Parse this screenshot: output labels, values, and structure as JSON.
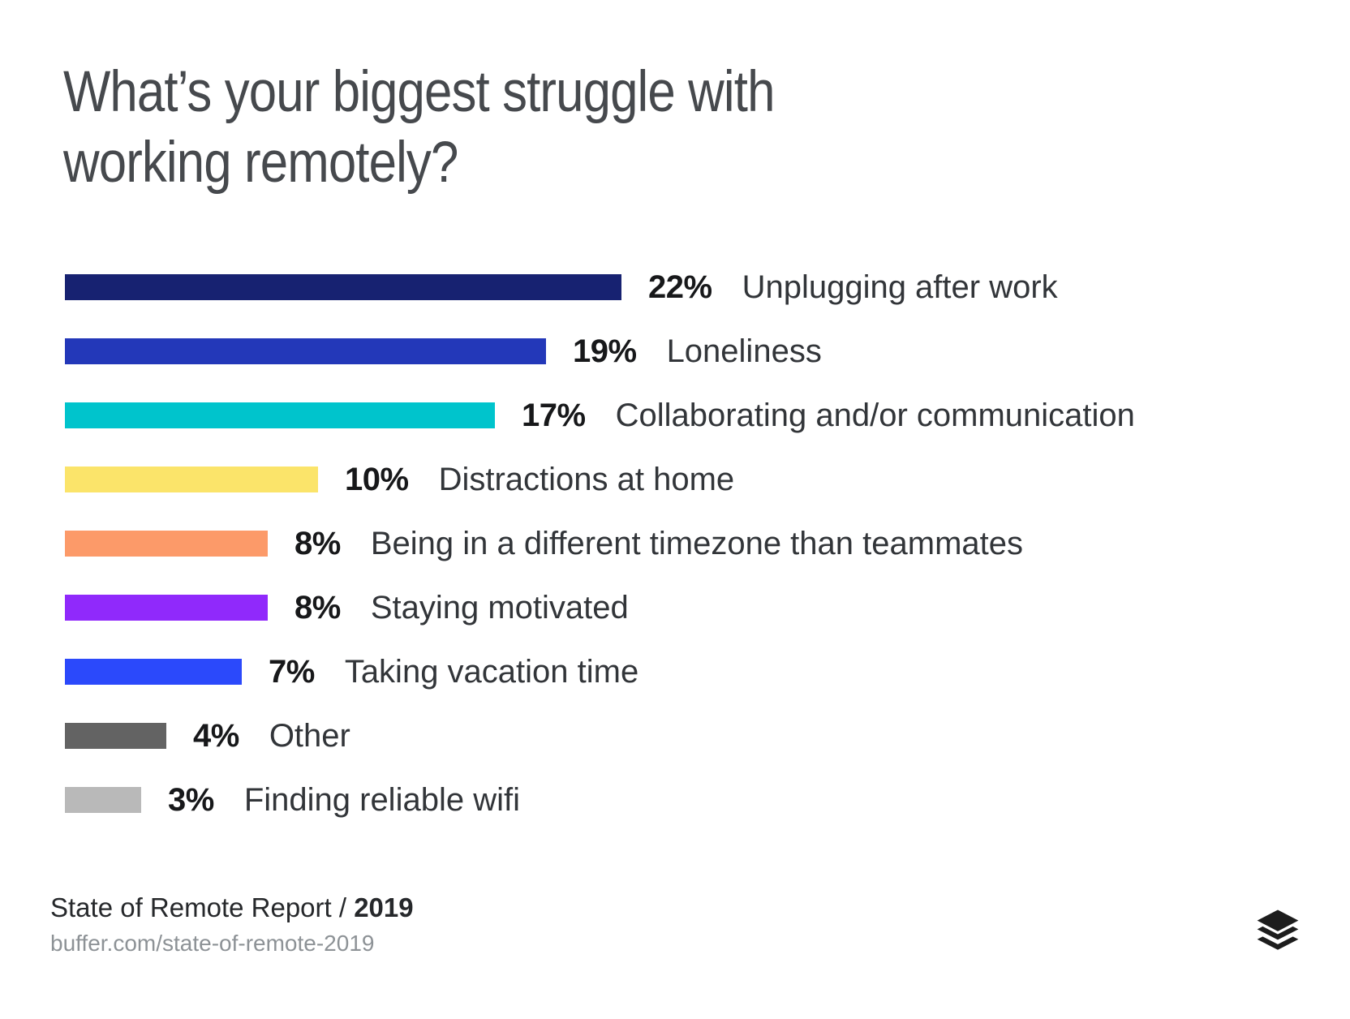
{
  "title": {
    "line1": "What’s your biggest struggle with",
    "line2": "working remotely?"
  },
  "chart_data": {
    "type": "bar",
    "orientation": "horizontal",
    "title": "What’s your biggest struggle with working remotely?",
    "unit": "percent",
    "xlim": [
      0,
      22
    ],
    "grid": false,
    "legend": false,
    "categories": [
      "Unplugging after work",
      "Loneliness",
      "Collaborating and/or communication",
      "Distractions at home",
      "Being in a different timezone than teammates",
      "Staying motivated",
      "Taking vacation time",
      "Other",
      "Finding reliable wifi"
    ],
    "values": [
      22,
      19,
      17,
      10,
      8,
      8,
      7,
      4,
      3
    ],
    "value_labels": [
      "22%",
      "19%",
      "17%",
      "10%",
      "8%",
      "8%",
      "7%",
      "4%",
      "3%"
    ],
    "bar_colors": [
      "#172271",
      "#2338b9",
      "#00c4cc",
      "#fbe46a",
      "#fc9a69",
      "#9029fb",
      "#2b49fb",
      "#636363",
      "#b9b9b9"
    ]
  },
  "footer": {
    "report_title": "State of Remote Report / ",
    "report_year": "2019",
    "url": "buffer.com/state-of-remote-2019"
  },
  "branding": {
    "logo_name": "buffer-logo",
    "logo_color": "#1d1d1d"
  }
}
